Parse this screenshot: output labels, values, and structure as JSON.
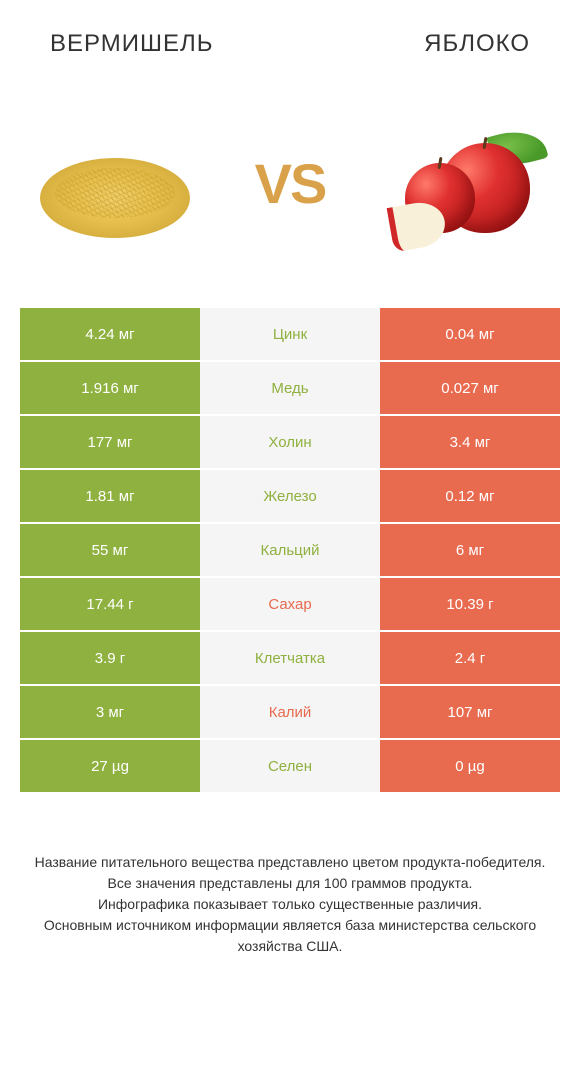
{
  "header": {
    "left_title": "ВЕРМИШЕЛЬ",
    "right_title": "ЯБЛОКО"
  },
  "vs_label": "VS",
  "colors": {
    "left": "#8fb13f",
    "right": "#e86a4f",
    "mid_bg": "#f5f5f5",
    "text_on_color": "#ffffff"
  },
  "rows": [
    {
      "left": "4.24 мг",
      "label": "Цинк",
      "right": "0.04 мг",
      "winner": "left"
    },
    {
      "left": "1.916 мг",
      "label": "Медь",
      "right": "0.027 мг",
      "winner": "left"
    },
    {
      "left": "177 мг",
      "label": "Холин",
      "right": "3.4 мг",
      "winner": "left"
    },
    {
      "left": "1.81 мг",
      "label": "Железо",
      "right": "0.12 мг",
      "winner": "left"
    },
    {
      "left": "55 мг",
      "label": "Кальций",
      "right": "6 мг",
      "winner": "left"
    },
    {
      "left": "17.44 г",
      "label": "Сахар",
      "right": "10.39 г",
      "winner": "right"
    },
    {
      "left": "3.9 г",
      "label": "Клетчатка",
      "right": "2.4 г",
      "winner": "left"
    },
    {
      "left": "3 мг",
      "label": "Калий",
      "right": "107 мг",
      "winner": "right"
    },
    {
      "left": "27 µg",
      "label": "Селен",
      "right": "0 µg",
      "winner": "left"
    }
  ],
  "footnote": "Название питательного вещества представлено цветом продукта-победителя.\nВсе значения представлены для 100 граммов продукта.\nИнфографика показывает только существенные различия.\nОсновным источником информации является база министерства сельского хозяйства США."
}
